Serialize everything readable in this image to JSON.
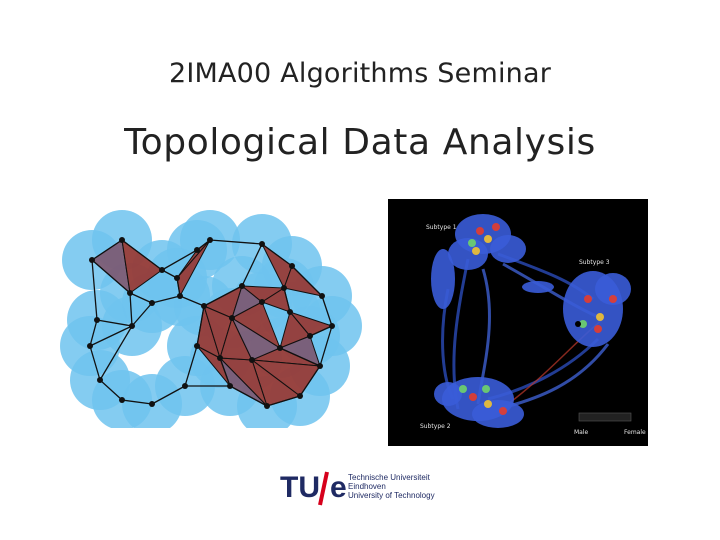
{
  "slide": {
    "course": "2IMA00 Algorithms Seminar",
    "title": "Topological Data Analysis"
  },
  "mapper_figure": {
    "labels": {
      "subtype1": "Subtype 1",
      "subtype3": "Subtype 3",
      "subtype2": "Subtype 2",
      "male": "Male",
      "female": "Female"
    }
  },
  "logo": {
    "line1": "Technische Universiteit",
    "line2": "Eindhoven",
    "line3": "University of Technology",
    "colors": {
      "navy": "#1f2a63",
      "red": "#d6001c"
    }
  },
  "colors": {
    "ball_blue": "#6fc3ef",
    "simplex_red": "#9b2b22",
    "simplex_mauve": "#7c4f66",
    "mapper_background": "#000000"
  }
}
